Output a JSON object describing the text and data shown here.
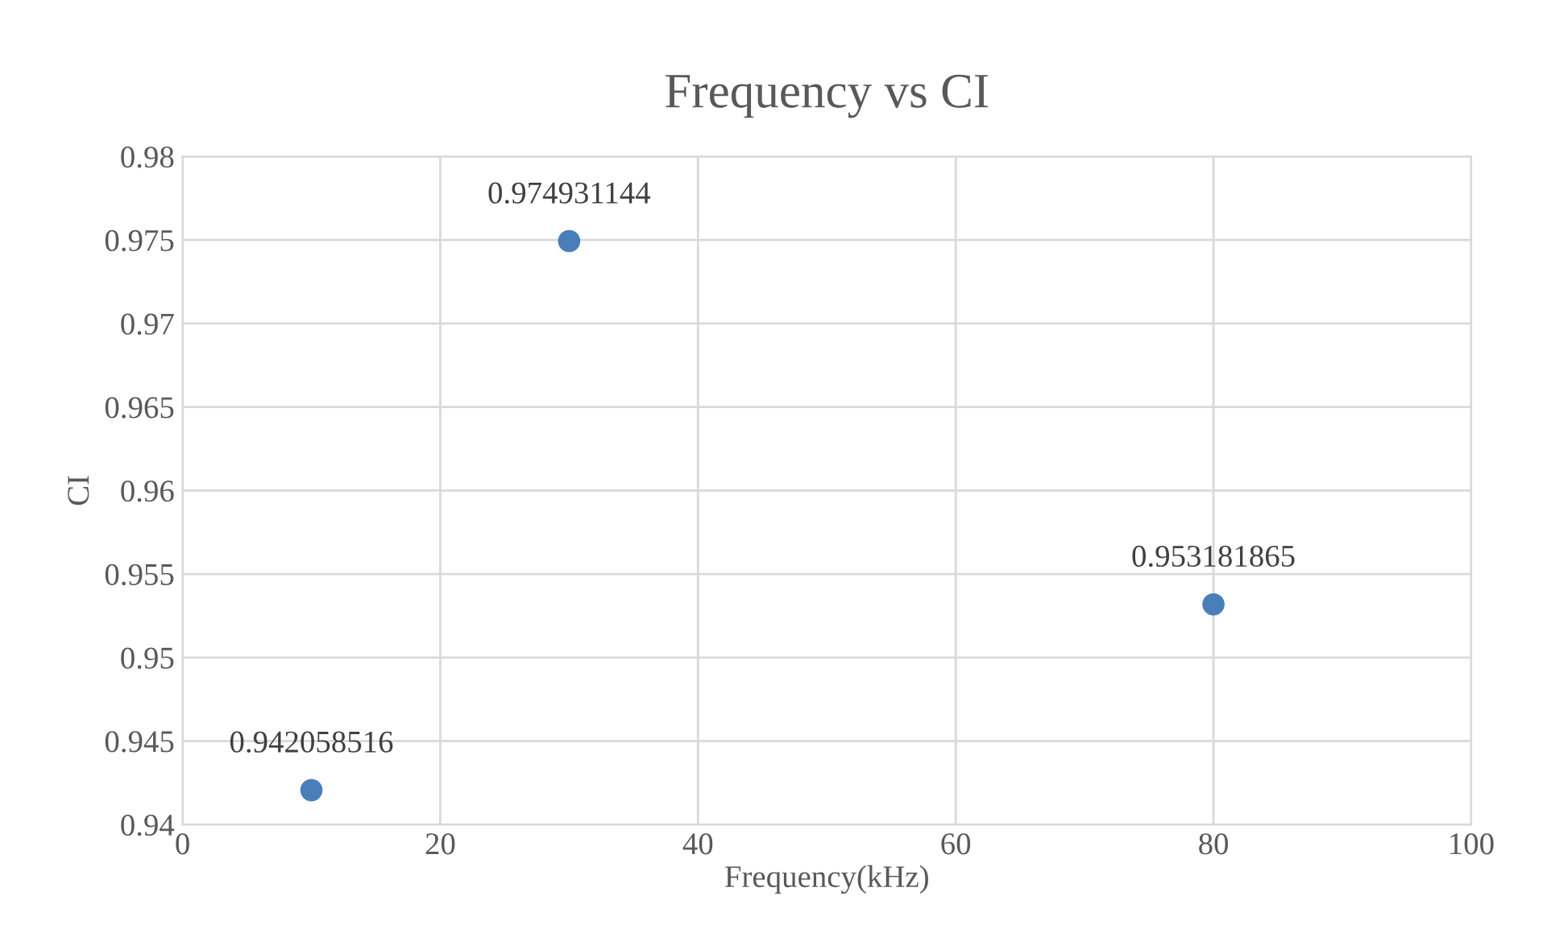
{
  "chart_data": {
    "type": "scatter",
    "title": "Frequency vs CI",
    "xlabel": "Frequency(kHz)",
    "ylabel": "CI",
    "x": [
      10,
      30,
      80
    ],
    "series": [
      {
        "color": "#4a7ebb",
        "values": [
          0.942058516,
          0.974931144,
          0.953181865
        ]
      }
    ],
    "data_labels": true,
    "marker": "circle",
    "grid": true,
    "xlim": [
      0,
      100
    ],
    "xticks": [
      0,
      20,
      40,
      60,
      80,
      100
    ],
    "ylim": [
      0.94,
      0.98
    ],
    "yticks": [
      0.94,
      0.945,
      0.95,
      0.955,
      0.96,
      0.965,
      0.97,
      0.975,
      0.98
    ]
  }
}
